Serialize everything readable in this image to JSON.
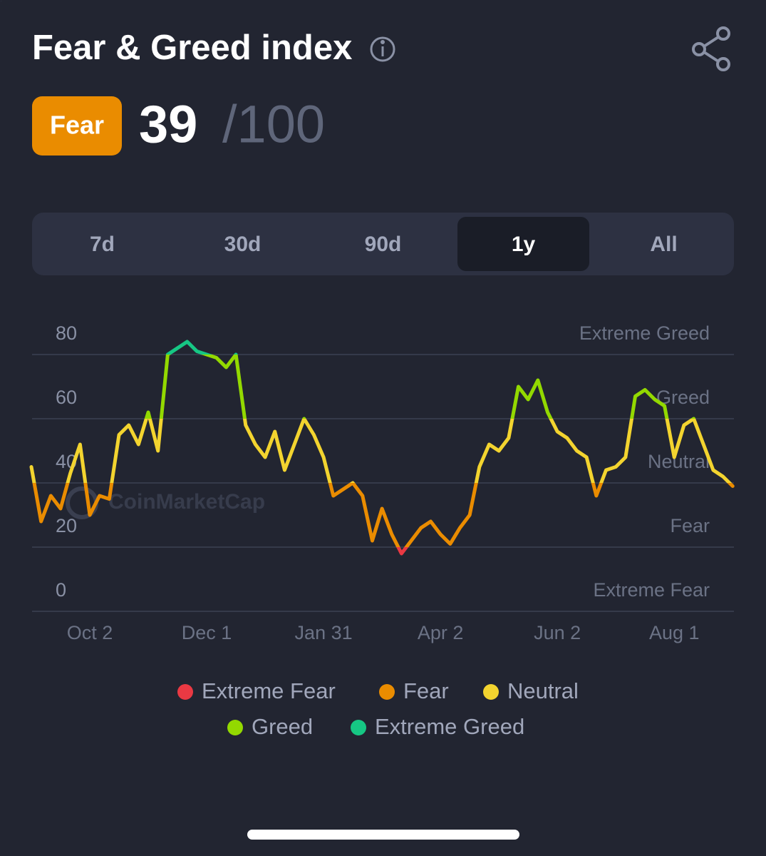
{
  "header": {
    "title": "Fear & Greed index",
    "status_label": "Fear",
    "score": 39,
    "score_suffix": "/100"
  },
  "tabs": {
    "items": [
      "7d",
      "30d",
      "90d",
      "1y",
      "All"
    ],
    "active": 3
  },
  "chart_data": {
    "type": "line",
    "watermark": "CoinMarketCap",
    "categories": [
      null,
      null,
      null,
      null,
      null,
      null,
      "Oct 2",
      null,
      null,
      null,
      null,
      null,
      null,
      null,
      null,
      null,
      null,
      null,
      "Dec 1",
      null,
      null,
      null,
      null,
      null,
      null,
      null,
      null,
      null,
      null,
      null,
      "Jan 31",
      null,
      null,
      null,
      null,
      null,
      null,
      null,
      null,
      null,
      null,
      null,
      "Apr 2",
      null,
      null,
      null,
      null,
      null,
      null,
      null,
      null,
      null,
      null,
      null,
      "Jun 2",
      null,
      null,
      null,
      null,
      null,
      null,
      null,
      null,
      null,
      null,
      null,
      "Aug 1",
      null,
      null,
      null,
      null,
      null,
      null
    ],
    "values": [
      45,
      28,
      36,
      32,
      43,
      52,
      30,
      36,
      35,
      55,
      58,
      52,
      62,
      50,
      80,
      82,
      84,
      81,
      80,
      79,
      76,
      80,
      58,
      52,
      48,
      56,
      44,
      52,
      60,
      55,
      48,
      36,
      38,
      40,
      36,
      22,
      32,
      24,
      18,
      22,
      26,
      28,
      24,
      21,
      26,
      30,
      45,
      52,
      50,
      54,
      70,
      66,
      72,
      62,
      56,
      54,
      50,
      48,
      36,
      44,
      45,
      48,
      67,
      69,
      66,
      64,
      48,
      58,
      60,
      52,
      44,
      42,
      39
    ],
    "zones": [
      {
        "name": "Extreme Fear",
        "color": "#ea3943",
        "from": 0
      },
      {
        "name": "Fear",
        "color": "#ea8c00",
        "from": 20
      },
      {
        "name": "Neutral",
        "color": "#f3d42f",
        "from": 40
      },
      {
        "name": "Greed",
        "color": "#93d900",
        "from": 60
      },
      {
        "name": "Extreme Greed",
        "color": "#16c784",
        "from": 80
      }
    ],
    "ylim": [
      0,
      90
    ],
    "yticks": [
      0,
      20,
      40,
      60,
      80
    ],
    "grid": true
  }
}
